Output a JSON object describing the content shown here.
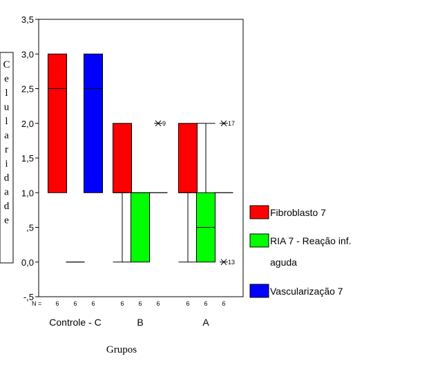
{
  "chart_data": {
    "type": "box",
    "xlabel": "Grupos",
    "ylabel": "Celularidade",
    "ylim": [
      -0.5,
      3.5
    ],
    "y_ticks": [
      "3,5",
      "3,0",
      "2,5",
      "2,0",
      "1,5",
      "1,0",
      ",5",
      "0,0",
      "-,5"
    ],
    "n_label": "N =",
    "categories": [
      "Controle - C",
      "B",
      "A"
    ],
    "series": [
      {
        "name": "Fibroblasto  7",
        "color": "#ff0000",
        "boxes": [
          {
            "n": "6",
            "min": 1.0,
            "q1": 1.0,
            "median": 2.5,
            "q3": 3.0,
            "max": 3.0,
            "outliers": []
          },
          {
            "n": "6",
            "min": 0.0,
            "q1": 1.0,
            "median": 1.0,
            "q3": 2.0,
            "max": 2.0,
            "outliers": []
          },
          {
            "n": "6",
            "min": 0.0,
            "q1": 1.0,
            "median": 1.0,
            "q3": 2.0,
            "max": 2.0,
            "outliers": []
          }
        ]
      },
      {
        "name": "RIA 7 - Reação inf. aguda",
        "color": "#00ff00",
        "boxes": [
          {
            "n": "6",
            "min": 0.0,
            "q1": 0.0,
            "median": 0.0,
            "q3": 0.0,
            "max": 0.0,
            "outliers": []
          },
          {
            "n": "6",
            "min": 0.0,
            "q1": 0.0,
            "median": 1.0,
            "q3": 1.0,
            "max": 1.0,
            "outliers": []
          },
          {
            "n": "6",
            "min": 0.0,
            "q1": 0.0,
            "median": 0.5,
            "q3": 1.0,
            "max": 2.0,
            "outliers": []
          }
        ]
      },
      {
        "name": "Vascularização 7",
        "color": "#0000ff",
        "boxes": [
          {
            "n": "6",
            "min": 1.0,
            "q1": 1.0,
            "median": 2.5,
            "q3": 3.0,
            "max": 3.0,
            "outliers": []
          },
          {
            "n": "6",
            "min": 1.0,
            "q1": 1.0,
            "median": 1.0,
            "q3": 1.0,
            "max": 1.0,
            "outliers": [
              {
                "value": 2.0,
                "label": "9"
              }
            ]
          },
          {
            "n": "6",
            "min": 1.0,
            "q1": 1.0,
            "median": 1.0,
            "q3": 1.0,
            "max": 1.0,
            "outliers": [
              {
                "value": 2.0,
                "label": "17"
              },
              {
                "value": 0.0,
                "label": "13"
              }
            ]
          }
        ]
      }
    ],
    "legend": "right"
  }
}
